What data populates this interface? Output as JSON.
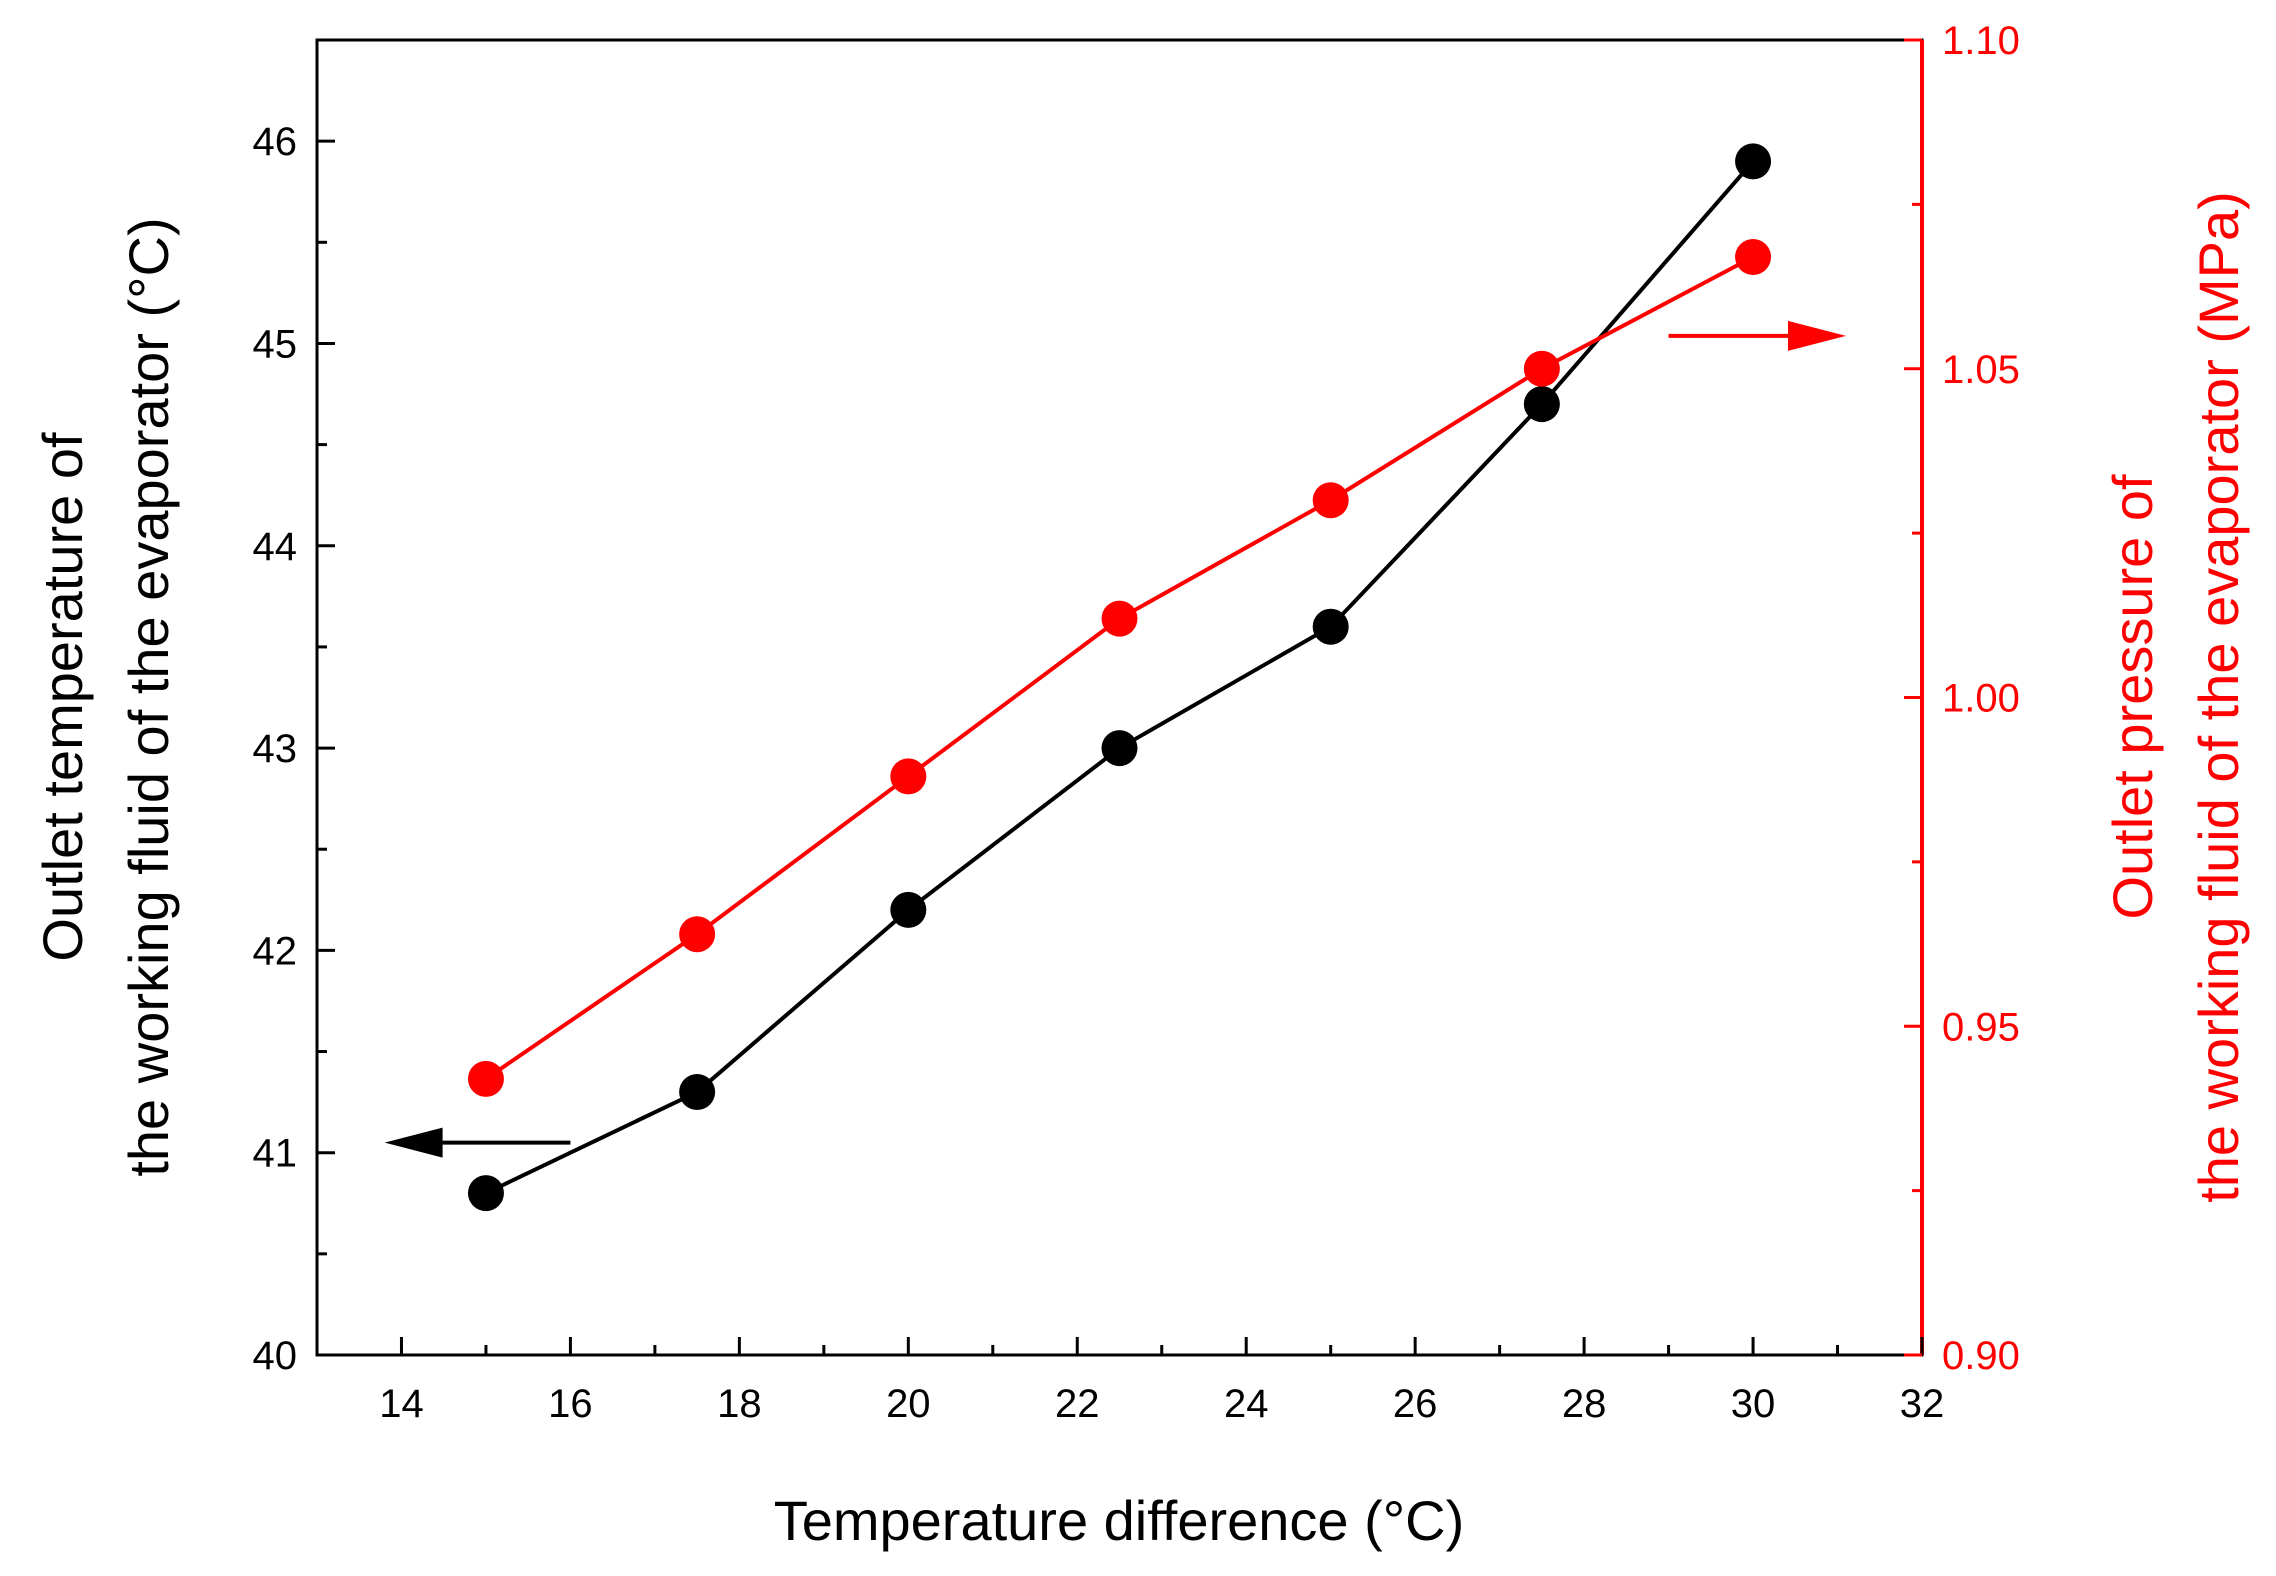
{
  "chart_data": {
    "type": "line",
    "title": "",
    "xlabel": "Temperature difference (°C)",
    "xlim": [
      13,
      32
    ],
    "xticks": [
      14,
      16,
      18,
      20,
      22,
      24,
      26,
      28,
      30,
      32
    ],
    "x": [
      15,
      17.5,
      20,
      22.5,
      25,
      27.5,
      30
    ],
    "left_axis": {
      "label_line1": "Outlet temperature of",
      "label_line2": "the working fluid of the evaporator (°C)",
      "ylim": [
        40,
        46.5
      ],
      "ticks": [
        40,
        41,
        42,
        43,
        44,
        45,
        46
      ],
      "tick_labels": [
        "40",
        "41",
        "42",
        "43",
        "44",
        "45",
        "46"
      ],
      "color": "#000000"
    },
    "right_axis": {
      "label_line1": "Outlet pressure of",
      "label_line2": "the working fluid of the evaporator (MPa)",
      "ylim": [
        0.9,
        1.1
      ],
      "ticks": [
        0.9,
        0.95,
        1.0,
        1.05,
        1.1
      ],
      "tick_labels": [
        "0.90",
        "0.95",
        "1.00",
        "1.05",
        "1.10"
      ],
      "color": "#ff0000"
    },
    "series": [
      {
        "name": "Outlet temperature",
        "axis": "left",
        "color": "#000000",
        "values": [
          40.8,
          41.3,
          42.2,
          43.0,
          43.6,
          44.7,
          45.9
        ]
      },
      {
        "name": "Outlet pressure",
        "axis": "right",
        "color": "#ff0000",
        "values": [
          0.942,
          0.964,
          0.988,
          1.012,
          1.03,
          1.05,
          1.067
        ]
      }
    ],
    "annotations": [
      {
        "kind": "arrow",
        "direction": "left",
        "axis": "left",
        "x_from": 16.0,
        "x_to": 13.8,
        "y": 41.05,
        "color": "#000000"
      },
      {
        "kind": "arrow",
        "direction": "right",
        "axis": "right",
        "x_from": 29.0,
        "x_to": 31.1,
        "y": 1.055,
        "color": "#ff0000"
      }
    ]
  }
}
